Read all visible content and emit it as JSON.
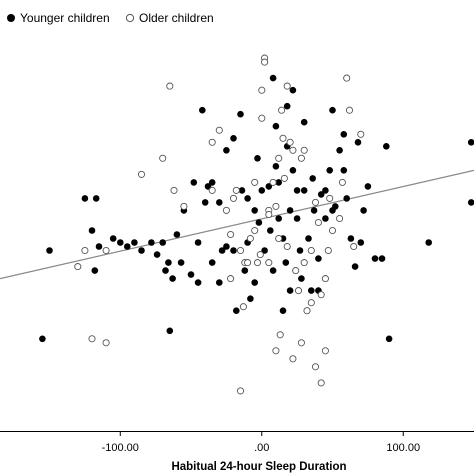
{
  "chart_data": {
    "type": "scatter",
    "title": "",
    "xlabel": "Habitual 24-hour Sleep Duration",
    "ylabel": "",
    "xlim": [
      -185,
      150
    ],
    "ylim": [
      0,
      100
    ],
    "x_ticks": [
      -100,
      0,
      100
    ],
    "x_tick_labels": [
      "-100.00",
      ".00",
      "100.00"
    ],
    "grid": false,
    "legend_position": "top-left",
    "colors": {
      "younger": "#000000",
      "older_stroke": "#555555",
      "fit_line": "#888888"
    },
    "series": [
      {
        "name": "Younger children",
        "marker": "filled-circle",
        "points": [
          [
            -150,
            45
          ],
          [
            -155,
            23
          ],
          [
            -125,
            58
          ],
          [
            -117,
            58
          ],
          [
            -118,
            40
          ],
          [
            -120,
            50
          ],
          [
            -115,
            46
          ],
          [
            -105,
            48
          ],
          [
            -100,
            47
          ],
          [
            -95,
            46
          ],
          [
            -90,
            47
          ],
          [
            -85,
            45
          ],
          [
            -78,
            47
          ],
          [
            -74,
            44
          ],
          [
            -70,
            47
          ],
          [
            -68,
            40
          ],
          [
            -66,
            42
          ],
          [
            -63,
            38
          ],
          [
            -60,
            49
          ],
          [
            -57,
            42
          ],
          [
            -55,
            55
          ],
          [
            -50,
            39
          ],
          [
            -45,
            37
          ],
          [
            -45,
            47
          ],
          [
            -40,
            57
          ],
          [
            -42,
            80
          ],
          [
            -38,
            61
          ],
          [
            -35,
            42
          ],
          [
            -30,
            57
          ],
          [
            -28,
            45
          ],
          [
            -25,
            46
          ],
          [
            -20,
            45
          ],
          [
            -18,
            30
          ],
          [
            -15,
            79
          ],
          [
            -14,
            60
          ],
          [
            -10,
            47
          ],
          [
            -8,
            33
          ],
          [
            -5,
            55
          ],
          [
            -3,
            68
          ],
          [
            0,
            60
          ],
          [
            2,
            45
          ],
          [
            5,
            61
          ],
          [
            8,
            40
          ],
          [
            10,
            66
          ],
          [
            12,
            53
          ],
          [
            15,
            48
          ],
          [
            17,
            42
          ],
          [
            18,
            71
          ],
          [
            20,
            55
          ],
          [
            22,
            65
          ],
          [
            25,
            53
          ],
          [
            27,
            45
          ],
          [
            28,
            68
          ],
          [
            30,
            60
          ],
          [
            33,
            48
          ],
          [
            35,
            35
          ],
          [
            37,
            55
          ],
          [
            40,
            43
          ],
          [
            42,
            59
          ],
          [
            45,
            53
          ],
          [
            48,
            65
          ],
          [
            50,
            80
          ],
          [
            52,
            56
          ],
          [
            55,
            70
          ],
          [
            58,
            65
          ],
          [
            60,
            58
          ],
          [
            63,
            48
          ],
          [
            66,
            41
          ],
          [
            68,
            72
          ],
          [
            70,
            47
          ],
          [
            72,
            55
          ],
          [
            75,
            61
          ],
          [
            80,
            43
          ],
          [
            85,
            43
          ],
          [
            88,
            71
          ],
          [
            90,
            23
          ],
          [
            118,
            47
          ],
          [
            148,
            72
          ],
          [
            148,
            57
          ],
          [
            -65,
            25
          ],
          [
            -30,
            37
          ],
          [
            -5,
            37
          ],
          [
            20,
            35
          ],
          [
            15,
            30
          ],
          [
            32,
            30
          ],
          [
            40,
            35
          ],
          [
            -20,
            73
          ],
          [
            -25,
            70
          ],
          [
            10,
            76
          ],
          [
            25,
            60
          ],
          [
            45,
            60
          ],
          [
            58,
            74
          ],
          [
            30,
            77
          ],
          [
            22,
            85
          ],
          [
            8,
            88
          ],
          [
            -2,
            52
          ],
          [
            -10,
            58
          ],
          [
            -35,
            62
          ],
          [
            6,
            50
          ],
          [
            12,
            62
          ],
          [
            -12,
            40
          ],
          [
            36,
            63
          ],
          [
            18,
            81
          ],
          [
            50,
            55
          ],
          [
            28,
            38
          ],
          [
            -48,
            62
          ]
        ]
      },
      {
        "name": "Older children",
        "marker": "open-circle",
        "points": [
          [
            -125,
            45
          ],
          [
            -130,
            41
          ],
          [
            -110,
            45
          ],
          [
            -110,
            22
          ],
          [
            -120,
            23
          ],
          [
            -85,
            64
          ],
          [
            -70,
            68
          ],
          [
            -65,
            86
          ],
          [
            -55,
            56
          ],
          [
            -35,
            72
          ],
          [
            -35,
            60
          ],
          [
            -30,
            75
          ],
          [
            -25,
            55
          ],
          [
            -22,
            49
          ],
          [
            -18,
            60
          ],
          [
            -15,
            45
          ],
          [
            -12,
            42
          ],
          [
            -10,
            42
          ],
          [
            -8,
            48
          ],
          [
            -5,
            62
          ],
          [
            -3,
            42
          ],
          [
            0,
            78
          ],
          [
            2,
            93
          ],
          [
            2,
            92
          ],
          [
            5,
            55
          ],
          [
            8,
            62
          ],
          [
            10,
            56
          ],
          [
            12,
            68
          ],
          [
            12,
            48
          ],
          [
            15,
            73
          ],
          [
            16,
            63
          ],
          [
            18,
            46
          ],
          [
            20,
            72
          ],
          [
            22,
            70
          ],
          [
            24,
            40
          ],
          [
            26,
            35
          ],
          [
            28,
            68
          ],
          [
            30,
            42
          ],
          [
            32,
            30
          ],
          [
            35,
            45
          ],
          [
            38,
            57
          ],
          [
            40,
            52
          ],
          [
            42,
            34
          ],
          [
            45,
            38
          ],
          [
            47,
            45
          ],
          [
            50,
            50
          ],
          [
            55,
            53
          ],
          [
            57,
            62
          ],
          [
            60,
            88
          ],
          [
            62,
            80
          ],
          [
            65,
            46
          ],
          [
            70,
            74
          ],
          [
            5,
            42
          ],
          [
            -5,
            50
          ],
          [
            -1,
            44
          ],
          [
            10,
            20
          ],
          [
            13,
            24
          ],
          [
            22,
            18
          ],
          [
            28,
            22
          ],
          [
            38,
            16
          ],
          [
            42,
            12
          ],
          [
            45,
            20
          ],
          [
            -15,
            10
          ],
          [
            -22,
            38
          ],
          [
            -13,
            31
          ],
          [
            35,
            32
          ],
          [
            5,
            54
          ],
          [
            18,
            86
          ],
          [
            14,
            80
          ],
          [
            -62,
            60
          ],
          [
            -20,
            58
          ],
          [
            48,
            58
          ],
          [
            30,
            70
          ],
          [
            0,
            85
          ]
        ]
      }
    ],
    "trend_line": {
      "x": [
        -185,
        150
      ],
      "y": [
        38,
        65
      ]
    }
  }
}
